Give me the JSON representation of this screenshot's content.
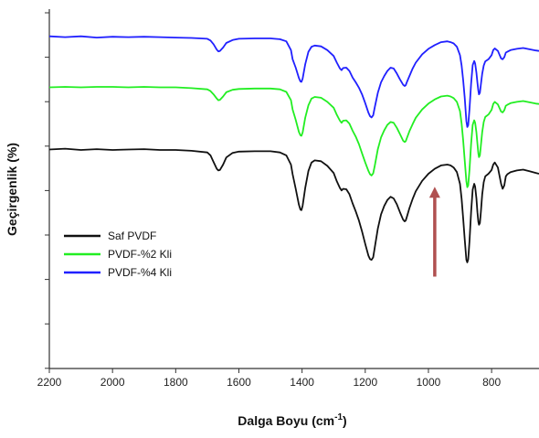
{
  "chart_data": {
    "type": "line",
    "xlabel": "Dalga Boyu (cm",
    "xlabel_sup": "-1",
    "xlabel_close": ")",
    "ylabel": "Geçirgenlik (%)",
    "xlim": [
      2200,
      650
    ],
    "x_reversed": true,
    "x_ticks": [
      2200,
      2000,
      1800,
      1600,
      1400,
      1200,
      1000,
      800
    ],
    "y_tick_count": 9,
    "y_tick_labels_shown": false,
    "grid": false,
    "legend_position": "left",
    "series": [
      {
        "name": "PVDF-%4 Kli",
        "color": "#2020ff",
        "x": [
          2200,
          2150,
          2100,
          2050,
          2000,
          1950,
          1900,
          1850,
          1800,
          1750,
          1700,
          1690,
          1680,
          1670,
          1665,
          1660,
          1650,
          1640,
          1620,
          1600,
          1550,
          1500,
          1470,
          1450,
          1435,
          1430,
          1420,
          1410,
          1405,
          1402,
          1398,
          1390,
          1380,
          1370,
          1360,
          1340,
          1320,
          1300,
          1290,
          1280,
          1275,
          1270,
          1260,
          1250,
          1240,
          1230,
          1220,
          1210,
          1200,
          1190,
          1185,
          1180,
          1175,
          1170,
          1160,
          1150,
          1140,
          1130,
          1120,
          1110,
          1100,
          1090,
          1080,
          1075,
          1072,
          1068,
          1060,
          1050,
          1040,
          1020,
          1000,
          980,
          960,
          940,
          930,
          920,
          910,
          900,
          895,
          890,
          885,
          880,
          877,
          874,
          870,
          865,
          860,
          855,
          852,
          848,
          845,
          842,
          840,
          837,
          834,
          830,
          825,
          820,
          810,
          800,
          795,
          790,
          780,
          770,
          765,
          760,
          755,
          750,
          740,
          720,
          700,
          680,
          660,
          650
        ],
        "y": [
          99.5,
          99.3,
          99.5,
          99.2,
          99.4,
          99.3,
          99.4,
          99.3,
          99.2,
          99.1,
          98.9,
          98.5,
          97.6,
          96.3,
          95.9,
          96.0,
          96.8,
          97.9,
          98.6,
          98.9,
          99.0,
          99.0,
          98.8,
          98.3,
          96.2,
          94.0,
          92.0,
          89.5,
          88.7,
          88.6,
          89.4,
          92.8,
          95.8,
          97.0,
          97.3,
          97.1,
          96.2,
          94.8,
          93.2,
          91.8,
          91.4,
          91.9,
          92.0,
          91.2,
          89.6,
          88.5,
          87.2,
          85.6,
          83.5,
          81.2,
          80.4,
          80.1,
          80.6,
          82.5,
          86.0,
          88.5,
          90.0,
          91.2,
          92.0,
          91.8,
          90.6,
          89.2,
          87.9,
          87.6,
          87.8,
          88.6,
          90.0,
          91.8,
          93.2,
          95.2,
          96.5,
          97.4,
          98.1,
          98.3,
          98.1,
          97.8,
          97.0,
          95.0,
          92.5,
          89.0,
          84.8,
          79.2,
          77.8,
          78.2,
          82.0,
          88.2,
          92.6,
          93.6,
          93.0,
          90.8,
          88.4,
          86.5,
          85.6,
          86.0,
          88.0,
          90.5,
          92.5,
          93.5,
          94.0,
          95.0,
          96.2,
          96.6,
          96.0,
          94.2,
          94.0,
          94.5,
          95.6,
          95.8,
          96.2,
          96.5,
          96.7,
          96.4,
          96.1,
          96.0
        ]
      },
      {
        "name": "PVDF-%2 Kli",
        "color": "#22ee22",
        "x": [
          2200,
          2150,
          2100,
          2050,
          2000,
          1950,
          1900,
          1850,
          1800,
          1750,
          1700,
          1690,
          1680,
          1670,
          1665,
          1660,
          1650,
          1640,
          1620,
          1600,
          1550,
          1500,
          1470,
          1450,
          1435,
          1430,
          1420,
          1410,
          1405,
          1402,
          1398,
          1390,
          1380,
          1370,
          1360,
          1340,
          1320,
          1300,
          1290,
          1280,
          1275,
          1270,
          1260,
          1250,
          1240,
          1230,
          1220,
          1210,
          1200,
          1190,
          1185,
          1180,
          1175,
          1170,
          1160,
          1150,
          1140,
          1130,
          1120,
          1110,
          1100,
          1090,
          1080,
          1075,
          1072,
          1068,
          1060,
          1050,
          1040,
          1020,
          1000,
          980,
          960,
          940,
          930,
          920,
          910,
          900,
          895,
          890,
          885,
          880,
          877,
          874,
          870,
          865,
          860,
          855,
          852,
          848,
          845,
          842,
          840,
          837,
          834,
          830,
          825,
          820,
          810,
          800,
          795,
          790,
          780,
          770,
          765,
          760,
          755,
          750,
          740,
          720,
          700,
          680,
          660,
          650
        ],
        "y": [
          87.3,
          87.4,
          87.3,
          87.4,
          87.4,
          87.3,
          87.4,
          87.3,
          87.3,
          87.1,
          86.8,
          86.4,
          85.6,
          84.6,
          84.2,
          84.3,
          85.1,
          86.1,
          86.7,
          86.9,
          87.0,
          87.0,
          86.8,
          86.2,
          84.2,
          82.0,
          79.5,
          76.6,
          75.8,
          75.7,
          76.5,
          80.0,
          83.0,
          84.6,
          85.0,
          84.8,
          83.8,
          82.4,
          80.7,
          79.3,
          78.8,
          79.3,
          79.4,
          78.6,
          76.9,
          75.5,
          73.7,
          71.5,
          69.3,
          67.3,
          66.5,
          66.2,
          66.7,
          68.5,
          72.5,
          75.3,
          77.0,
          78.3,
          79.0,
          78.8,
          77.6,
          76.1,
          74.5,
          74.2,
          74.4,
          75.2,
          76.8,
          78.5,
          80.0,
          82.0,
          83.4,
          84.4,
          85.1,
          85.3,
          85.1,
          84.7,
          83.8,
          81.6,
          78.6,
          74.6,
          69.8,
          64.8,
          63.4,
          63.8,
          67.5,
          73.8,
          78.3,
          79.4,
          78.8,
          76.5,
          73.8,
          71.5,
          70.6,
          71.0,
          73.4,
          76.5,
          79.0,
          80.2,
          80.8,
          81.9,
          83.3,
          83.8,
          83.2,
          81.5,
          81.3,
          81.8,
          82.9,
          83.1,
          83.5,
          83.8,
          84.0,
          83.7,
          83.4,
          83.3
        ]
      },
      {
        "name": "Saf PVDF",
        "color": "#111111",
        "x": [
          2200,
          2150,
          2100,
          2050,
          2000,
          1950,
          1900,
          1850,
          1800,
          1750,
          1700,
          1690,
          1680,
          1670,
          1665,
          1660,
          1650,
          1640,
          1620,
          1600,
          1550,
          1500,
          1470,
          1450,
          1435,
          1430,
          1420,
          1410,
          1405,
          1402,
          1398,
          1390,
          1380,
          1370,
          1360,
          1340,
          1320,
          1300,
          1290,
          1280,
          1275,
          1270,
          1260,
          1250,
          1240,
          1230,
          1220,
          1210,
          1200,
          1190,
          1185,
          1180,
          1175,
          1170,
          1160,
          1150,
          1140,
          1130,
          1120,
          1110,
          1100,
          1090,
          1080,
          1075,
          1072,
          1068,
          1060,
          1050,
          1040,
          1020,
          1000,
          980,
          960,
          940,
          930,
          920,
          910,
          900,
          895,
          890,
          885,
          880,
          877,
          874,
          870,
          865,
          860,
          855,
          852,
          848,
          845,
          842,
          840,
          837,
          834,
          830,
          825,
          820,
          810,
          800,
          795,
          790,
          780,
          770,
          765,
          760,
          755,
          750,
          740,
          720,
          700,
          680,
          660,
          650
        ],
        "y": [
          72.4,
          72.6,
          72.3,
          72.5,
          72.3,
          72.4,
          72.5,
          72.3,
          72.3,
          72.1,
          71.7,
          71.0,
          69.4,
          67.8,
          67.4,
          67.5,
          68.8,
          70.5,
          71.6,
          71.9,
          72.0,
          72.0,
          71.7,
          71.0,
          68.8,
          66.5,
          63.0,
          59.2,
          58.0,
          57.9,
          59.0,
          63.2,
          67.3,
          69.3,
          69.8,
          69.6,
          68.5,
          66.8,
          64.8,
          63.2,
          62.6,
          63.0,
          62.9,
          61.7,
          59.5,
          57.6,
          55.4,
          52.8,
          49.8,
          47.0,
          46.2,
          46.0,
          46.6,
          48.9,
          53.5,
          56.9,
          58.9,
          60.3,
          61.1,
          60.7,
          59.3,
          57.4,
          55.6,
          55.2,
          55.4,
          56.4,
          58.4,
          60.6,
          62.4,
          64.9,
          66.6,
          67.8,
          68.6,
          68.8,
          68.6,
          68.1,
          67.0,
          64.2,
          60.6,
          55.9,
          50.9,
          46.0,
          45.4,
          46.1,
          50.4,
          57.5,
          62.8,
          64.2,
          63.5,
          60.7,
          57.4,
          55.1,
          54.4,
          54.8,
          57.5,
          61.6,
          64.6,
          66.0,
          66.6,
          67.5,
          68.8,
          69.3,
          68.1,
          64.2,
          63.0,
          63.8,
          66.0,
          66.5,
          67.0,
          67.4,
          67.6,
          67.2,
          66.8,
          66.6
        ]
      }
    ],
    "annotation": {
      "type": "arrow",
      "color": "#b05050",
      "x": 980,
      "y_from": 42.0,
      "y_to": 63.5
    },
    "legend": [
      {
        "label": "Saf PVDF",
        "color": "#111111"
      },
      {
        "label": "PVDF-%2 Kli",
        "color": "#22ee22"
      },
      {
        "label": "PVDF-%4 Kli",
        "color": "#2020ff"
      }
    ]
  }
}
